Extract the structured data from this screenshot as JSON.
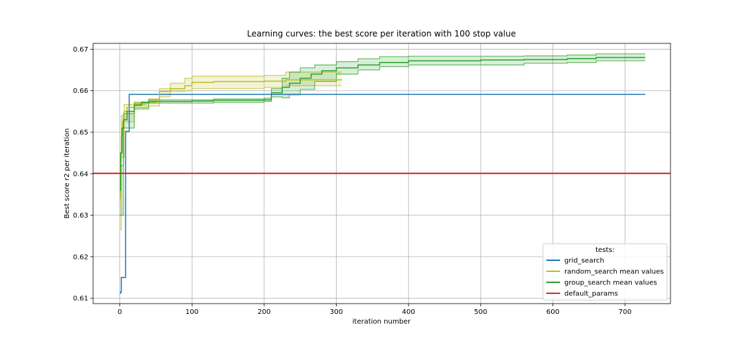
{
  "chart_data": {
    "type": "line",
    "title": "Learning curves: the best score per iteration with 100 stop value",
    "xlabel": "iteration number",
    "ylabel": "Best score r2 per iteration",
    "xlim": [
      -37,
      763
    ],
    "ylim": [
      0.6087,
      0.6714
    ],
    "xticks": [
      0,
      100,
      200,
      300,
      400,
      500,
      600,
      700
    ],
    "yticks": [
      0.61,
      0.62,
      0.63,
      0.64,
      0.65,
      0.66,
      0.67
    ],
    "grid": true,
    "legend": {
      "title": "tests:",
      "placement": "lower-right",
      "entries": [
        "grid_search",
        "random_search mean values",
        "group_search mean values",
        "default_params"
      ]
    },
    "series": [
      {
        "name": "grid_search",
        "color": "#1f77b4",
        "points": [
          [
            0,
            0.6112
          ],
          [
            1,
            0.6115
          ],
          [
            2,
            0.615
          ],
          [
            7,
            0.615
          ],
          [
            8,
            0.6502
          ],
          [
            12,
            0.6502
          ],
          [
            13,
            0.6591
          ],
          [
            200,
            0.6591
          ],
          [
            728,
            0.6591
          ]
        ]
      },
      {
        "name": "random_search mean values",
        "color": "#bcbd22",
        "band": true,
        "points": [
          [
            0,
            0.634
          ],
          [
            1,
            0.643
          ],
          [
            2,
            0.649
          ],
          [
            4,
            0.6525
          ],
          [
            6,
            0.655
          ],
          [
            10,
            0.656
          ],
          [
            20,
            0.6567
          ],
          [
            35,
            0.6572
          ],
          [
            50,
            0.6578
          ],
          [
            55,
            0.6598
          ],
          [
            70,
            0.6605
          ],
          [
            90,
            0.6612
          ],
          [
            100,
            0.662
          ],
          [
            130,
            0.6622
          ],
          [
            200,
            0.6623
          ],
          [
            230,
            0.6626
          ],
          [
            307,
            0.6628
          ]
        ],
        "upper": [
          [
            0,
            0.644
          ],
          [
            2,
            0.654
          ],
          [
            6,
            0.6567
          ],
          [
            20,
            0.6573
          ],
          [
            40,
            0.658
          ],
          [
            55,
            0.6605
          ],
          [
            70,
            0.6618
          ],
          [
            90,
            0.663
          ],
          [
            100,
            0.6635
          ],
          [
            200,
            0.6637
          ],
          [
            230,
            0.6645
          ],
          [
            307,
            0.6645
          ]
        ],
        "lower": [
          [
            0,
            0.6265
          ],
          [
            2,
            0.644
          ],
          [
            6,
            0.6525
          ],
          [
            20,
            0.6555
          ],
          [
            40,
            0.6563
          ],
          [
            55,
            0.6585
          ],
          [
            70,
            0.6598
          ],
          [
            90,
            0.66
          ],
          [
            100,
            0.6605
          ],
          [
            200,
            0.6608
          ],
          [
            230,
            0.6612
          ],
          [
            307,
            0.6612
          ]
        ]
      },
      {
        "name": "group_search mean values",
        "color": "#2ca02c",
        "band": true,
        "points": [
          [
            0,
            0.636
          ],
          [
            1,
            0.645
          ],
          [
            3,
            0.651
          ],
          [
            5,
            0.653
          ],
          [
            10,
            0.655
          ],
          [
            20,
            0.6565
          ],
          [
            30,
            0.6572
          ],
          [
            40,
            0.6574
          ],
          [
            100,
            0.6575
          ],
          [
            130,
            0.6577
          ],
          [
            200,
            0.6578
          ],
          [
            210,
            0.6595
          ],
          [
            225,
            0.6608
          ],
          [
            235,
            0.6618
          ],
          [
            250,
            0.663
          ],
          [
            265,
            0.664
          ],
          [
            280,
            0.6648
          ],
          [
            300,
            0.6655
          ],
          [
            330,
            0.6662
          ],
          [
            360,
            0.6668
          ],
          [
            400,
            0.6672
          ],
          [
            500,
            0.6674
          ],
          [
            560,
            0.6675
          ],
          [
            620,
            0.6677
          ],
          [
            660,
            0.668
          ],
          [
            728,
            0.668
          ]
        ],
        "upper": [
          [
            0,
            0.642
          ],
          [
            5,
            0.6545
          ],
          [
            20,
            0.657
          ],
          [
            40,
            0.6578
          ],
          [
            130,
            0.658
          ],
          [
            200,
            0.6582
          ],
          [
            210,
            0.6605
          ],
          [
            225,
            0.663
          ],
          [
            235,
            0.6645
          ],
          [
            250,
            0.6655
          ],
          [
            270,
            0.6662
          ],
          [
            300,
            0.667
          ],
          [
            330,
            0.6677
          ],
          [
            360,
            0.6682
          ],
          [
            400,
            0.6683
          ],
          [
            560,
            0.6684
          ],
          [
            620,
            0.6686
          ],
          [
            660,
            0.6689
          ],
          [
            728,
            0.6689
          ]
        ],
        "lower": [
          [
            0,
            0.63
          ],
          [
            5,
            0.651
          ],
          [
            20,
            0.6558
          ],
          [
            40,
            0.657
          ],
          [
            130,
            0.6572
          ],
          [
            200,
            0.6574
          ],
          [
            210,
            0.6585
          ],
          [
            225,
            0.6583
          ],
          [
            235,
            0.659
          ],
          [
            250,
            0.6603
          ],
          [
            270,
            0.6622
          ],
          [
            300,
            0.664
          ],
          [
            330,
            0.665
          ],
          [
            360,
            0.6658
          ],
          [
            400,
            0.6662
          ],
          [
            560,
            0.6666
          ],
          [
            620,
            0.6668
          ],
          [
            660,
            0.6672
          ],
          [
            728,
            0.6672
          ]
        ]
      },
      {
        "name": "default_params",
        "color": "#d62728",
        "horizontal": true,
        "value": 0.6401
      }
    ]
  }
}
